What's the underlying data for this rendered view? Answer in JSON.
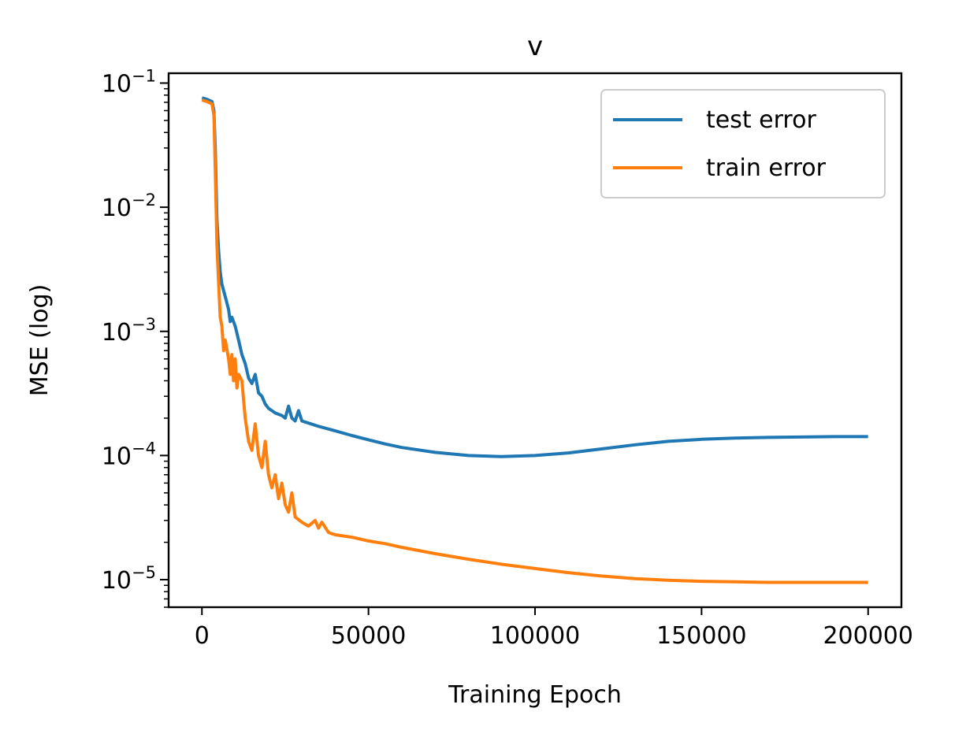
{
  "chart_data": {
    "type": "line",
    "title": "v",
    "xlabel": "Training Epoch",
    "ylabel": "MSE (log)",
    "xlim": [
      -10000,
      210000
    ],
    "ylim": [
      6e-06,
      0.12
    ],
    "yscale": "log",
    "grid": false,
    "legend_position": "top-right",
    "xticks": [
      {
        "value": 0,
        "label": "0"
      },
      {
        "value": 50000,
        "label": "50000"
      },
      {
        "value": 100000,
        "label": "100000"
      },
      {
        "value": 150000,
        "label": "150000"
      },
      {
        "value": 200000,
        "label": "200000"
      }
    ],
    "yticks": [
      {
        "value": 0.1,
        "base": "10",
        "exp": "−1"
      },
      {
        "value": 0.01,
        "base": "10",
        "exp": "−2"
      },
      {
        "value": 0.001,
        "base": "10",
        "exp": "−3"
      },
      {
        "value": 0.0001,
        "base": "10",
        "exp": "−4"
      },
      {
        "value": 1e-05,
        "base": "10",
        "exp": "−5"
      }
    ],
    "series": [
      {
        "name": "test error",
        "color": "#1f77b4",
        "points": [
          [
            0,
            0.076
          ],
          [
            1500,
            0.074
          ],
          [
            3000,
            0.071
          ],
          [
            3600,
            0.06
          ],
          [
            4000,
            0.03
          ],
          [
            4500,
            0.008
          ],
          [
            5000,
            0.0045
          ],
          [
            5500,
            0.003
          ],
          [
            6000,
            0.0024
          ],
          [
            7000,
            0.0019
          ],
          [
            8000,
            0.0015
          ],
          [
            8500,
            0.0012
          ],
          [
            9000,
            0.0013
          ],
          [
            10000,
            0.0011
          ],
          [
            11000,
            0.00085
          ],
          [
            12000,
            0.00065
          ],
          [
            13000,
            0.00055
          ],
          [
            14000,
            0.00042
          ],
          [
            15000,
            0.00038
          ],
          [
            16000,
            0.00045
          ],
          [
            17000,
            0.00032
          ],
          [
            18000,
            0.0003
          ],
          [
            19000,
            0.00026
          ],
          [
            20000,
            0.00024
          ],
          [
            22000,
            0.00022
          ],
          [
            24000,
            0.00021
          ],
          [
            25000,
            0.0002
          ],
          [
            26000,
            0.00025
          ],
          [
            27000,
            0.0002
          ],
          [
            28000,
            0.00019
          ],
          [
            29000,
            0.00023
          ],
          [
            30000,
            0.00019
          ],
          [
            35000,
            0.000172
          ],
          [
            40000,
            0.000158
          ],
          [
            45000,
            0.000145
          ],
          [
            50000,
            0.000134
          ],
          [
            55000,
            0.000124
          ],
          [
            60000,
            0.000116
          ],
          [
            70000,
            0.000106
          ],
          [
            80000,
            0.0001
          ],
          [
            90000,
            9.8e-05
          ],
          [
            100000,
            0.0001
          ],
          [
            110000,
            0.000105
          ],
          [
            120000,
            0.000113
          ],
          [
            130000,
            0.000122
          ],
          [
            140000,
            0.00013
          ],
          [
            150000,
            0.000135
          ],
          [
            160000,
            0.000138
          ],
          [
            170000,
            0.00014
          ],
          [
            180000,
            0.000141
          ],
          [
            190000,
            0.000142
          ],
          [
            200000,
            0.000142
          ]
        ]
      },
      {
        "name": "train error",
        "color": "#ff7f0e",
        "points": [
          [
            0,
            0.073
          ],
          [
            1500,
            0.071
          ],
          [
            3000,
            0.068
          ],
          [
            3600,
            0.055
          ],
          [
            4000,
            0.02
          ],
          [
            4500,
            0.005
          ],
          [
            5000,
            0.0025
          ],
          [
            5500,
            0.0013
          ],
          [
            6000,
            0.0011
          ],
          [
            6500,
            0.0007
          ],
          [
            7000,
            0.00085
          ],
          [
            8000,
            0.0006
          ],
          [
            8500,
            0.00045
          ],
          [
            9000,
            0.00065
          ],
          [
            9500,
            0.0004
          ],
          [
            10000,
            0.0006
          ],
          [
            10500,
            0.00035
          ],
          [
            11000,
            0.00045
          ],
          [
            12000,
            0.0004
          ],
          [
            13000,
            0.0002
          ],
          [
            14000,
            0.00013
          ],
          [
            15000,
            0.00011
          ],
          [
            16000,
            0.00018
          ],
          [
            17000,
            0.0001
          ],
          [
            18000,
            8e-05
          ],
          [
            19000,
            0.00013
          ],
          [
            20000,
            7e-05
          ],
          [
            21000,
            5.5e-05
          ],
          [
            22000,
            7e-05
          ],
          [
            23000,
            4.5e-05
          ],
          [
            24000,
            6e-05
          ],
          [
            25000,
            4e-05
          ],
          [
            26000,
            3.5e-05
          ],
          [
            27000,
            5e-05
          ],
          [
            28000,
            3.2e-05
          ],
          [
            30000,
            2.9e-05
          ],
          [
            32000,
            2.7e-05
          ],
          [
            34000,
            3e-05
          ],
          [
            35000,
            2.6e-05
          ],
          [
            36000,
            2.9e-05
          ],
          [
            38000,
            2.4e-05
          ],
          [
            40000,
            2.3e-05
          ],
          [
            45000,
            2.2e-05
          ],
          [
            50000,
            2.05e-05
          ],
          [
            55000,
            1.95e-05
          ],
          [
            60000,
            1.82e-05
          ],
          [
            70000,
            1.62e-05
          ],
          [
            80000,
            1.46e-05
          ],
          [
            90000,
            1.33e-05
          ],
          [
            100000,
            1.23e-05
          ],
          [
            110000,
            1.14e-05
          ],
          [
            120000,
            1.07e-05
          ],
          [
            130000,
            1.02e-05
          ],
          [
            140000,
            9.9e-06
          ],
          [
            150000,
            9.7e-06
          ],
          [
            160000,
            9.6e-06
          ],
          [
            170000,
            9.5e-06
          ],
          [
            180000,
            9.5e-06
          ],
          [
            190000,
            9.5e-06
          ],
          [
            200000,
            9.5e-06
          ]
        ]
      }
    ]
  }
}
